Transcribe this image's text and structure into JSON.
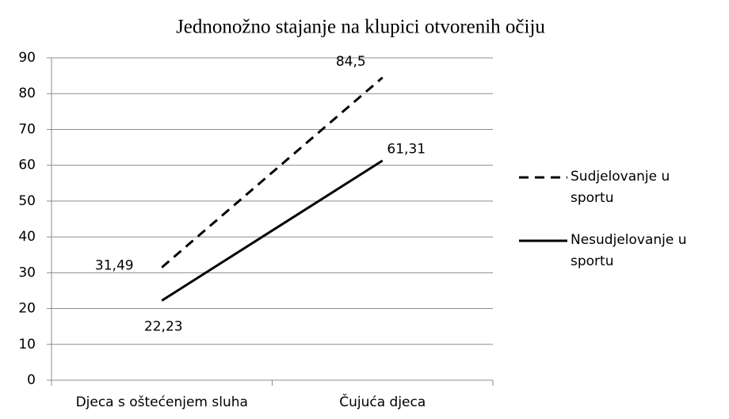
{
  "chart_data": {
    "type": "line",
    "title": "Jednonožno stajanje na klupici otvorenih očiju",
    "categories": [
      "Djeca s oštećenjem sluha",
      "Čujuća djeca"
    ],
    "series": [
      {
        "name": "Sudjelovanje u sportu",
        "color": "#000000",
        "linestyle": "dashed",
        "values": [
          31.49,
          84.5
        ],
        "value_labels": [
          "31,49",
          "84,5"
        ]
      },
      {
        "name": "Nesudjelovanje u sportu",
        "color": "#000000",
        "linestyle": "solid",
        "values": [
          22.23,
          61.31
        ],
        "value_labels": [
          "22,23",
          "61,31"
        ]
      }
    ],
    "ylim": [
      0,
      90
    ],
    "yticks": [
      0,
      10,
      20,
      30,
      40,
      50,
      60,
      70,
      80,
      90
    ],
    "grid": true,
    "legend": "right"
  }
}
